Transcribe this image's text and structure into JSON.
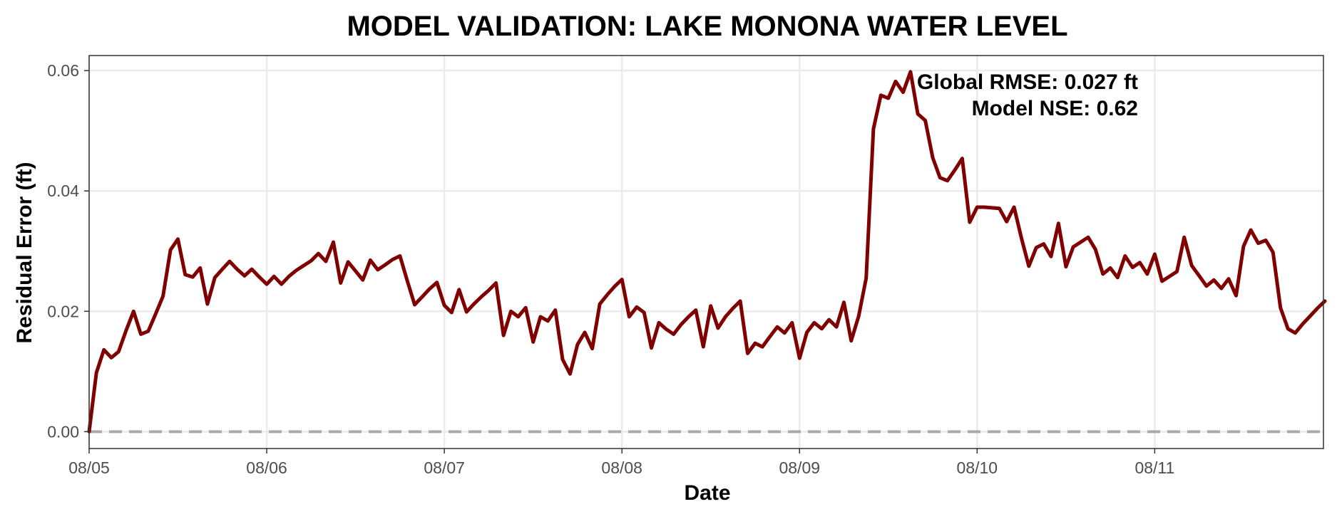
{
  "chart_data": {
    "type": "line",
    "title": "MODEL VALIDATION: LAKE MONONA WATER LEVEL",
    "xlabel": "Date",
    "ylabel": "Residual Error (ft)",
    "x_unit": "days since 08/05",
    "xlim": [
      0,
      6.95
    ],
    "ylim": [
      -0.0028,
      0.0625
    ],
    "x_ticks": [
      0,
      1,
      2,
      3,
      4,
      5,
      6
    ],
    "x_tick_labels": [
      "08/05",
      "08/06",
      "08/07",
      "08/08",
      "08/09",
      "08/10",
      "08/11"
    ],
    "y_ticks": [
      0,
      0.02,
      0.04,
      0.06
    ],
    "y_tick_labels": [
      "0.00",
      "0.02",
      "0.04",
      "0.06"
    ],
    "grid": true,
    "reference_line": {
      "y": 0,
      "style": "dashed",
      "color": "#aaaaaa"
    },
    "annotations": [
      "Global RMSE: 0.027 ft",
      "Model NSE: 0.62"
    ],
    "colors": {
      "line": "#800000",
      "grid": "#ebebeb",
      "panel_border": "#333333",
      "tick_label": "#4d4d4d"
    },
    "series": [
      {
        "x": [
          0.0,
          0.041,
          0.083,
          0.125,
          0.166,
          0.208,
          0.25,
          0.291,
          0.333,
          0.375,
          0.416,
          0.458,
          0.5,
          0.541,
          0.583,
          0.625,
          0.666,
          0.708,
          0.75,
          0.791,
          0.833,
          0.875,
          0.916,
          0.958,
          1.0,
          1.041,
          1.083,
          1.125,
          1.166,
          1.208,
          1.25,
          1.291,
          1.333,
          1.375,
          1.416,
          1.458,
          1.5,
          1.541,
          1.583,
          1.625,
          1.666,
          1.708,
          1.75,
          1.791,
          1.833,
          1.875,
          1.916,
          1.958,
          2.0,
          2.041,
          2.083,
          2.125,
          2.166,
          2.208,
          2.25,
          2.291,
          2.333,
          2.375,
          2.416,
          2.458,
          2.5,
          2.541,
          2.583,
          2.625,
          2.666,
          2.708,
          2.75,
          2.791,
          2.833,
          2.875,
          2.916,
          2.958,
          3.0,
          3.041,
          3.083,
          3.125,
          3.166,
          3.208,
          3.25,
          3.291,
          3.333,
          3.375,
          3.416,
          3.458,
          3.5,
          3.541,
          3.583,
          3.625,
          3.666,
          3.708,
          3.75,
          3.791,
          3.833,
          3.875,
          3.916,
          3.958,
          4.0,
          4.041,
          4.083,
          4.125,
          4.166,
          4.208,
          4.25,
          4.291,
          4.333,
          4.375,
          4.416,
          4.458,
          4.5,
          4.541,
          4.583,
          4.625,
          4.666,
          4.708,
          4.75,
          4.791,
          4.833,
          4.875,
          4.916,
          4.958,
          5.0,
          5.041,
          5.083,
          5.125,
          5.166,
          5.208,
          5.25,
          5.291,
          5.333,
          5.375,
          5.416,
          5.458,
          5.5,
          5.541,
          5.583,
          5.625,
          5.666,
          5.708,
          5.75,
          5.791,
          5.833,
          5.875,
          5.916,
          5.958,
          6.0,
          6.041,
          6.083,
          6.125,
          6.166,
          6.208,
          6.25,
          6.291,
          6.333,
          6.375,
          6.416,
          6.458,
          6.5,
          6.541,
          6.583,
          6.625,
          6.666,
          6.708,
          6.75,
          6.791,
          6.833,
          6.875,
          6.916,
          6.958
        ],
        "y": [
          0.0,
          0.0098,
          0.0136,
          0.0123,
          0.0133,
          0.0168,
          0.02,
          0.0162,
          0.0167,
          0.0196,
          0.0225,
          0.0302,
          0.032,
          0.0261,
          0.0257,
          0.0272,
          0.0212,
          0.0256,
          0.027,
          0.0283,
          0.027,
          0.0259,
          0.027,
          0.0257,
          0.0245,
          0.0258,
          0.0245,
          0.0258,
          0.0268,
          0.0276,
          0.0284,
          0.0296,
          0.0283,
          0.0315,
          0.0247,
          0.0282,
          0.0267,
          0.0252,
          0.0285,
          0.0269,
          0.0277,
          0.0286,
          0.0292,
          0.0251,
          0.0211,
          0.0224,
          0.0237,
          0.0248,
          0.021,
          0.0198,
          0.0236,
          0.0199,
          0.0212,
          0.0224,
          0.0235,
          0.0247,
          0.016,
          0.02,
          0.0191,
          0.0206,
          0.0149,
          0.0191,
          0.0184,
          0.0202,
          0.012,
          0.0096,
          0.0145,
          0.0165,
          0.0138,
          0.0212,
          0.0227,
          0.0241,
          0.0253,
          0.0191,
          0.0207,
          0.0198,
          0.0139,
          0.0181,
          0.017,
          0.0162,
          0.0178,
          0.0191,
          0.0202,
          0.0141,
          0.0209,
          0.0172,
          0.0191,
          0.0205,
          0.0217,
          0.013,
          0.0147,
          0.0141,
          0.0158,
          0.0174,
          0.0164,
          0.0181,
          0.0122,
          0.0165,
          0.0181,
          0.0171,
          0.0186,
          0.0174,
          0.0215,
          0.0151,
          0.0192,
          0.0255,
          0.0503,
          0.0559,
          0.0554,
          0.0582,
          0.0564,
          0.0598,
          0.0528,
          0.0517,
          0.0455,
          0.0422,
          0.0417,
          0.0435,
          0.0454,
          0.0348,
          0.0373,
          0.0373,
          0.0372,
          0.0371,
          0.0349,
          0.0373,
          0.0321,
          0.0275,
          0.0306,
          0.0312,
          0.0291,
          0.0346,
          0.0274,
          0.0307,
          0.0315,
          0.0323,
          0.0303,
          0.0262,
          0.0272,
          0.0256,
          0.0292,
          0.0273,
          0.0281,
          0.0262,
          0.0295,
          0.025,
          0.0258,
          0.0266,
          0.0323,
          0.0276,
          0.0259,
          0.0242,
          0.0252,
          0.0238,
          0.0254,
          0.0226,
          0.0308,
          0.0335,
          0.0313,
          0.0318,
          0.0298,
          0.0206,
          0.0171,
          0.0164,
          0.0179,
          0.0192,
          0.0205,
          0.0217
        ]
      }
    ]
  }
}
